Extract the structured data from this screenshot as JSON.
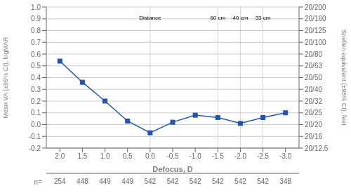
{
  "chart_data": {
    "type": "line",
    "x": [
      2.0,
      1.5,
      1.0,
      0.5,
      0.0,
      -0.5,
      -1.0,
      -1.5,
      -2.0,
      -2.5,
      -3.0
    ],
    "values": [
      0.54,
      0.36,
      0.2,
      0.03,
      -0.07,
      0.02,
      0.08,
      0.06,
      0.01,
      0.06,
      0.1
    ],
    "color": "#2255aa",
    "marker": "square",
    "xlabel": "Defocus, D",
    "ylabel": "Mean VA (±95% CI), logMAR",
    "y2label": "Snellen equivalent (±95% CI), feet",
    "xlim": [
      2.3,
      -3.3
    ],
    "xticks": [
      {
        "value": 2.0,
        "label": "2.0"
      },
      1.5,
      {
        "value": 1.0,
        "label": "1.0"
      },
      0.5,
      {
        "value": 0.0,
        "label": "0.0"
      },
      -0.5,
      {
        "value": -1.0,
        "label": "-1.0"
      },
      -1.5,
      {
        "value": -2.0,
        "label": "-2.0"
      },
      -2.5,
      {
        "value": -3.0,
        "label": "-3.0"
      }
    ],
    "ylim": [
      -0.2,
      1.0
    ],
    "yticks": [
      -0.2,
      -0.1,
      {
        "value": 0.0,
        "label": "0.0"
      },
      0.1,
      0.2,
      0.3,
      0.4,
      0.5,
      0.6,
      0.7,
      0.8,
      0.9,
      {
        "value": 1.0,
        "label": "1.0"
      }
    ],
    "y2lim": [
      -0.2,
      1.0
    ],
    "y2ticks": [
      {
        "value": -0.2,
        "label": "20/12.5"
      },
      {
        "value": -0.1,
        "label": "20/16"
      },
      {
        "value": 0.0,
        "label": "20/20"
      },
      {
        "value": 0.1,
        "label": "20/25"
      },
      {
        "value": 0.2,
        "label": "20/32"
      },
      {
        "value": 0.3,
        "label": "20/40"
      },
      {
        "value": 0.4,
        "label": "20/50"
      },
      {
        "value": 0.5,
        "label": "20/63"
      },
      {
        "value": 0.6,
        "label": "20/80"
      },
      {
        "value": 0.7,
        "label": "20/100"
      },
      {
        "value": 0.8,
        "label": "20/125"
      },
      {
        "value": 0.9,
        "label": "20/160"
      },
      {
        "value": 1.0,
        "label": "20/200"
      }
    ],
    "grid": true,
    "annotations": [
      {
        "text": "Distance",
        "x": 0.0
      },
      {
        "text": "60 cm",
        "x": -1.5
      },
      {
        "text": "40 cm",
        "x": -2.0
      },
      {
        "text": "33 cm",
        "x": -2.5
      }
    ],
    "vlines": [
      0.0,
      -1.5,
      -2.0,
      -2.5
    ],
    "n_label": "n=",
    "n_values": [
      254,
      448,
      449,
      449,
      542,
      542,
      542,
      542,
      542,
      542,
      348
    ]
  }
}
